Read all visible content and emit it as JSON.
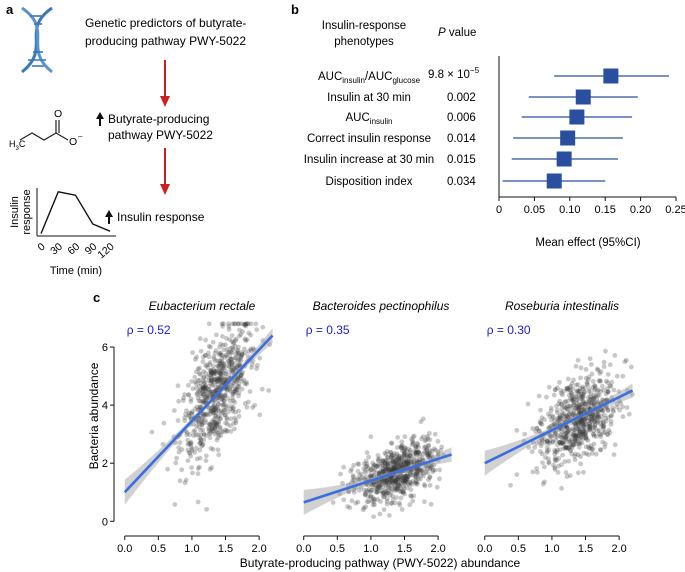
{
  "panel_a": {
    "label": "a",
    "step1_line1": "Genetic predictors of butyrate-",
    "step1_line2": "producing pathway PWY-5022",
    "step2_line1": "Butyrate-producing",
    "step2_line2": "pathway PWY-5022",
    "step3": "Insulin response",
    "mol_O_top": "O",
    "mol_O_minus": "O",
    "mol_H3C": "H",
    "mol_sub3": "3",
    "mol_C": "C",
    "inset_ylabel_1": "Insulin",
    "inset_ylabel_2": "response",
    "inset_ticks": [
      "0",
      "30",
      "60",
      "90",
      "120"
    ],
    "inset_xlabel": "Time (min)",
    "inset_curve": [
      [
        0,
        0.05
      ],
      [
        30,
        0.92
      ],
      [
        60,
        0.85
      ],
      [
        90,
        0.25
      ],
      [
        120,
        0.1
      ]
    ],
    "arrow_color": "#cc1f1f",
    "dna_color": "#3a78b8"
  },
  "panel_b": {
    "label": "b",
    "header_phenotypes_1": "Insulin-response",
    "header_phenotypes_2": "phenotypes",
    "header_p_italic": "P",
    "header_p_rest": " value",
    "marker_color": "#2b4fa0",
    "rows": [
      {
        "name": "AUCinsulin/AUCglucose",
        "p": "9.8 × 10",
        "p_exp": "−5",
        "mean": 0.158,
        "lo": 0.078,
        "hi": 0.24
      },
      {
        "name": "Insulin at 30 min",
        "p": "0.002",
        "mean": 0.119,
        "lo": 0.042,
        "hi": 0.196
      },
      {
        "name": "AUCinsulin",
        "p": "0.006",
        "mean": 0.11,
        "lo": 0.032,
        "hi": 0.188
      },
      {
        "name": "Correct insulin response",
        "p": "0.014",
        "mean": 0.097,
        "lo": 0.02,
        "hi": 0.175
      },
      {
        "name": "Insulin increase at 30 min",
        "p": "0.015",
        "mean": 0.092,
        "lo": 0.018,
        "hi": 0.168
      },
      {
        "name": "Disposition index",
        "p": "0.034",
        "mean": 0.078,
        "lo": 0.005,
        "hi": 0.15
      }
    ],
    "auc_main": "AUC",
    "auc_sub_insulin": "insulin",
    "auc_sub_glucose": "glucose",
    "slash": "/",
    "xticks": [
      "0",
      "0.05",
      "0.10",
      "0.15",
      "0.20",
      "0.25"
    ],
    "xlabel": "Mean effect (95%CI)"
  },
  "panel_c": {
    "label": "c",
    "ylabel": "Bacteria abundance",
    "xlabel": "Butyrate-producing pathway (PWY-5022) abundance",
    "rho_color": "#1a1adb",
    "line_color": "#3b6fe0",
    "yticks": [
      "0",
      "2",
      "4",
      "6"
    ],
    "xticks": [
      "0.0",
      "0.5",
      "1.0",
      "1.5",
      "2.0"
    ],
    "facets": [
      {
        "title": "Eubacterium rectale",
        "rho": "ρ = 0.52",
        "fit": [
          [
            0.0,
            1.0
          ],
          [
            2.2,
            6.4
          ]
        ],
        "center": [
          1.38,
          4.45
        ],
        "spread": [
          0.28,
          0.9
        ]
      },
      {
        "title": "Bacteroides pectinophilus",
        "rho": "ρ = 0.35",
        "fit": [
          [
            0.0,
            0.65
          ],
          [
            2.2,
            2.3
          ]
        ],
        "center": [
          1.38,
          1.7
        ],
        "spread": [
          0.3,
          0.45
        ]
      },
      {
        "title": "Roseburia intestinalis",
        "rho": "ρ = 0.30",
        "fit": [
          [
            0.0,
            2.0
          ],
          [
            2.2,
            4.5
          ]
        ],
        "center": [
          1.38,
          3.45
        ],
        "spread": [
          0.3,
          0.75
        ]
      }
    ]
  }
}
